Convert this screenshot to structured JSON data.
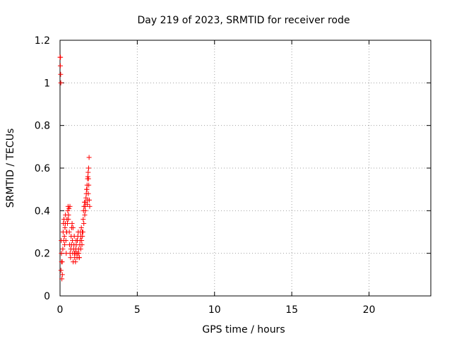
{
  "chart_data": {
    "type": "scatter",
    "title": "Day 219 of 2023, SRMTID for receiver rode",
    "xlabel": "GPS time / hours",
    "ylabel": "SRMTID / TECUs",
    "xlim": [
      0,
      24
    ],
    "ylim": [
      0,
      1.2
    ],
    "xticks": [
      0,
      5,
      10,
      15,
      20
    ],
    "xtick_labels": [
      "0",
      "5",
      "10",
      "15",
      "20"
    ],
    "yticks": [
      0,
      0.2,
      0.4,
      0.6,
      0.8,
      1.0,
      1.2
    ],
    "ytick_labels": [
      "0",
      "0.2",
      "0.4",
      "0.6",
      "0.8",
      "1",
      "1.2"
    ],
    "grid": true,
    "marker": "+",
    "series": [
      {
        "name": "SRMTID",
        "color": "#ff0000",
        "x": [
          0.0,
          0.02,
          0.04,
          0.05,
          0.08,
          0.1,
          0.12,
          0.15,
          0.18,
          0.2,
          0.22,
          0.25,
          0.28,
          0.3,
          0.32,
          0.35,
          0.38,
          0.4,
          0.42,
          0.45,
          0.48,
          0.5,
          0.52,
          0.55,
          0.58,
          0.6,
          0.62,
          0.65,
          0.68,
          0.7,
          0.72,
          0.75,
          0.78,
          0.8,
          0.82,
          0.85,
          0.88,
          0.9,
          0.92,
          0.95,
          0.98,
          1.0,
          1.02,
          1.05,
          1.08,
          1.1,
          1.12,
          1.15,
          1.18,
          1.2,
          1.22,
          1.25,
          1.28,
          1.3,
          1.32,
          1.35,
          1.38,
          1.4,
          1.42,
          1.45,
          1.48,
          1.5,
          1.52,
          1.55,
          1.58,
          1.6,
          1.62,
          1.65,
          1.68,
          1.7,
          1.72,
          1.75,
          1.78,
          1.8,
          1.82,
          1.85,
          1.88,
          1.9,
          1.92,
          0.03,
          0.06,
          0.09,
          0.14,
          0.24,
          0.34,
          0.44,
          0.54,
          0.64,
          0.74,
          0.84,
          0.94,
          1.04,
          1.14,
          1.24,
          1.34,
          1.44,
          1.54,
          1.64,
          1.74,
          1.84,
          1.86,
          1.83,
          1.79,
          1.76
        ],
        "values": [
          1.12,
          1.08,
          1.04,
          1.0,
          0.26,
          0.16,
          0.08,
          0.1,
          0.22,
          0.3,
          0.34,
          0.36,
          0.28,
          0.24,
          0.32,
          0.38,
          0.26,
          0.2,
          0.3,
          0.36,
          0.34,
          0.4,
          0.42,
          0.38,
          0.41,
          0.3,
          0.24,
          0.2,
          0.18,
          0.22,
          0.28,
          0.32,
          0.34,
          0.26,
          0.2,
          0.16,
          0.22,
          0.24,
          0.28,
          0.18,
          0.2,
          0.16,
          0.22,
          0.24,
          0.2,
          0.18,
          0.26,
          0.28,
          0.3,
          0.22,
          0.2,
          0.18,
          0.24,
          0.26,
          0.3,
          0.28,
          0.32,
          0.26,
          0.24,
          0.28,
          0.3,
          0.36,
          0.4,
          0.42,
          0.44,
          0.38,
          0.42,
          0.44,
          0.46,
          0.48,
          0.5,
          0.52,
          0.55,
          0.56,
          0.58,
          0.6,
          0.65,
          0.45,
          0.42,
          1.12,
          0.12,
          0.2,
          0.16,
          0.26,
          0.34,
          0.3,
          0.36,
          0.42,
          0.24,
          0.32,
          0.2,
          0.26,
          0.2,
          0.18,
          0.22,
          0.3,
          0.34,
          0.4,
          0.5,
          0.55,
          0.52,
          0.48,
          0.45,
          0.43
        ]
      }
    ]
  }
}
